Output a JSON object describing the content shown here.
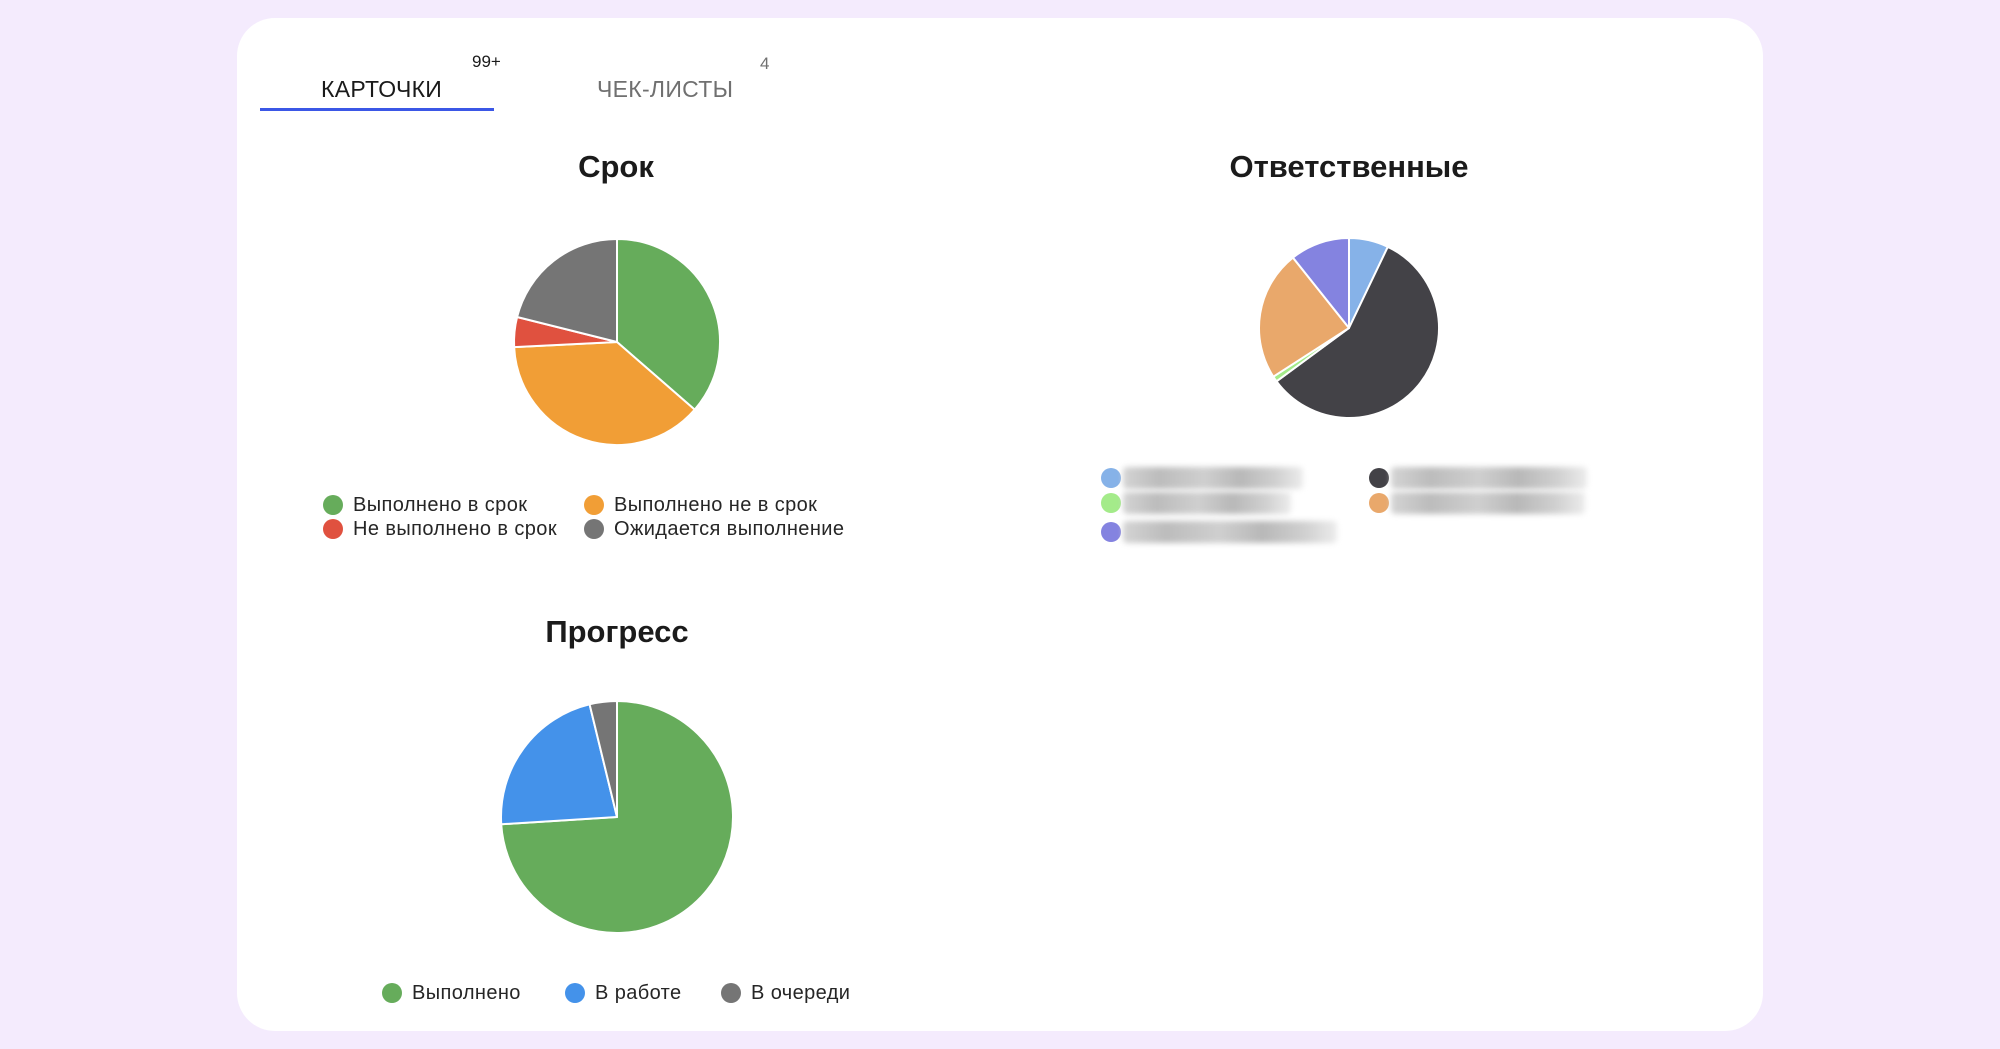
{
  "tabs": [
    {
      "label": "КАРТОЧКИ",
      "badge": "99+",
      "active": true
    },
    {
      "label": "ЧЕК-ЛИСТЫ",
      "badge": "4",
      "active": false
    }
  ],
  "colors": {
    "background": "#F4EBFD",
    "card": "#FFFFFF",
    "tab_accent": "#3B57E6"
  },
  "chart_data": [
    {
      "type": "pie",
      "title": "Срок",
      "categories": [
        "Выполнено в срок",
        "Выполнено не в срок",
        "Не выполнено в срок",
        "Ожидается выполнение"
      ],
      "values": [
        36.4,
        37.8,
        4.7,
        21.1
      ],
      "unit": "%",
      "colors": [
        "#66AC5B",
        "#F19E36",
        "#E0513F",
        "#757575"
      ],
      "start_angle": 0,
      "direction": "clockwise",
      "legend_position": "bottom"
    },
    {
      "type": "pie",
      "title": "Ответственные",
      "categories": [
        "[скрыто 1]",
        "[скрыто 2]",
        "[скрыто 3]",
        "[скрыто 4]",
        "[скрыто 5]"
      ],
      "values": [
        7.1,
        57.8,
        1.0,
        23.4,
        10.7
      ],
      "unit": "%",
      "colors": [
        "#86B2E8",
        "#434247",
        "#A4EB8A",
        "#E9A86B",
        "#8483E0"
      ],
      "legend_order": [
        0,
        1,
        2,
        3,
        4
      ],
      "legend_labels_redacted": true,
      "start_angle": 0,
      "direction": "clockwise",
      "legend_position": "bottom"
    },
    {
      "type": "pie",
      "title": "Прогресс",
      "categories": [
        "Выполнено",
        "В работе",
        "В очереди"
      ],
      "values": [
        74.0,
        22.2,
        3.8
      ],
      "unit": "%",
      "colors": [
        "#66AC5B",
        "#4492EA",
        "#757575"
      ],
      "start_angle": 0,
      "direction": "clockwise",
      "legend_position": "bottom"
    }
  ]
}
